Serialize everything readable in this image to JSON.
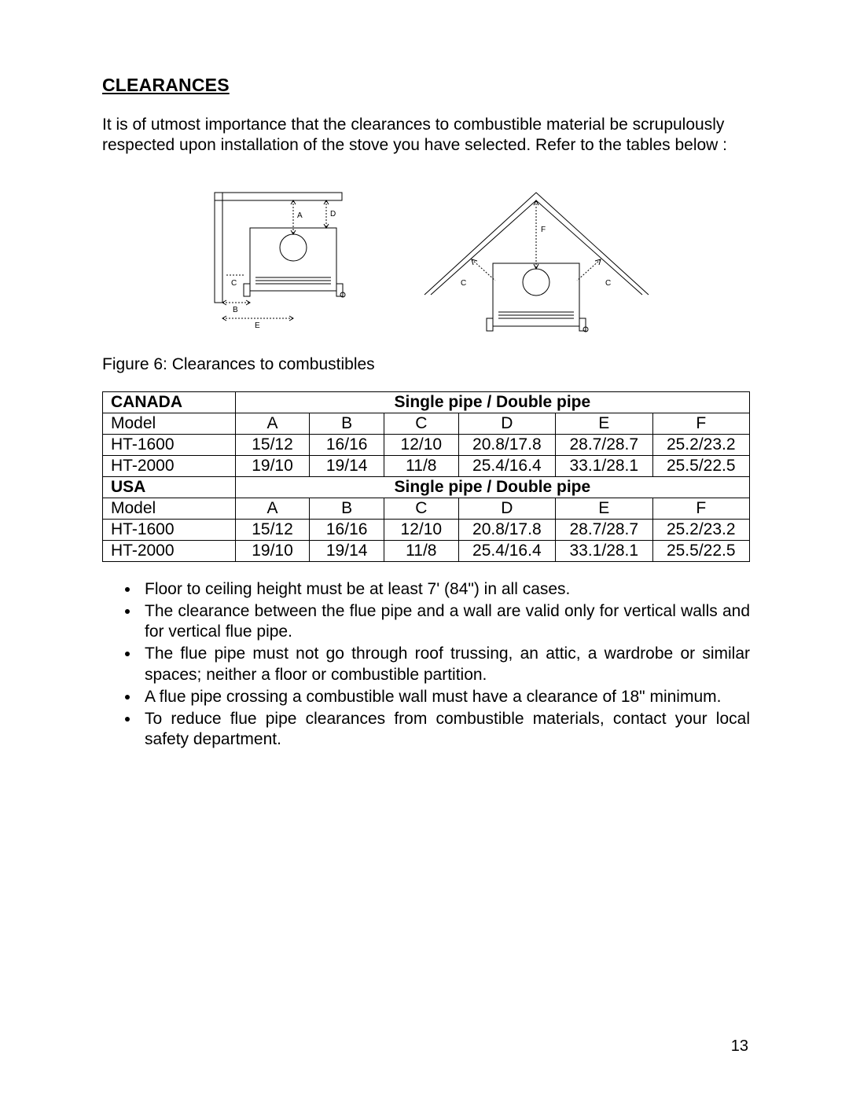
{
  "title": "CLEARANCES",
  "intro": "It is of utmost importance that the clearances to combustible material be scrupulously respected upon installation of the stove you have selected. Refer to the tables below :",
  "caption": "Figure 6: Clearances to combustibles",
  "table": {
    "pipe_header": "Single pipe / Double pipe",
    "columns": [
      "A",
      "B",
      "C",
      "D",
      "E",
      "F"
    ],
    "model_label": "Model",
    "regions": [
      {
        "name": "CANADA",
        "rows": [
          {
            "model": "HT-1600",
            "values": [
              "15/12",
              "16/16",
              "12/10",
              "20.8/17.8",
              "28.7/28.7",
              "25.2/23.2"
            ]
          },
          {
            "model": "HT-2000",
            "values": [
              "19/10",
              "19/14",
              "11/8",
              "25.4/16.4",
              "33.1/28.1",
              "25.5/22.5"
            ]
          }
        ]
      },
      {
        "name": "USA",
        "rows": [
          {
            "model": "HT-1600",
            "values": [
              "15/12",
              "16/16",
              "12/10",
              "20.8/17.8",
              "28.7/28.7",
              "25.2/23.2"
            ]
          },
          {
            "model": "HT-2000",
            "values": [
              "19/10",
              "19/14",
              "11/8",
              "25.4/16.4",
              "33.1/28.1",
              "25.5/22.5"
            ]
          }
        ]
      }
    ]
  },
  "notes": [
    "Floor to ceiling height must be at least 7' (84\") in all cases.",
    "The clearance between the flue pipe and a wall are valid only for vertical walls and for vertical flue pipe.",
    "The flue pipe must not go through roof trussing, an attic, a wardrobe or similar spaces; neither a floor or combustible partition.",
    "A flue pipe crossing a combustible wall must have a clearance of 18\" minimum.",
    "To reduce flue pipe clearances from combustible materials, contact your local safety department."
  ],
  "page_number": "13",
  "diagrams": {
    "wall": {
      "labels": [
        "A",
        "B",
        "C",
        "D",
        "E"
      ]
    },
    "corner": {
      "labels": [
        "C",
        "C",
        "F"
      ]
    }
  }
}
